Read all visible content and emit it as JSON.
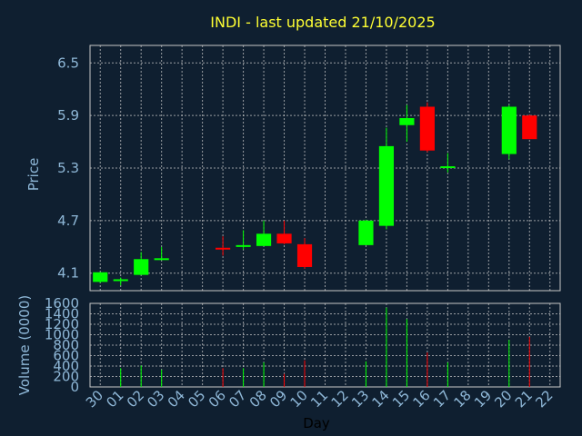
{
  "chart_data": {
    "type": "candlestick",
    "title": "INDI - last updated 21/10/2025",
    "ylabel": "Price",
    "xlabel": "Day",
    "volume_label": "Volume (0000)",
    "x_labels": [
      "30",
      "01",
      "02",
      "03",
      "04",
      "05",
      "06",
      "07",
      "08",
      "09",
      "10",
      "11",
      "12",
      "13",
      "14",
      "15",
      "16",
      "17",
      "18",
      "19",
      "20",
      "21",
      "22"
    ],
    "price_ticks": [
      "6.5",
      "5.9",
      "5.3",
      "4.7",
      "4.1"
    ],
    "price_tick_values": [
      6.5,
      5.9,
      5.3,
      4.7,
      4.1
    ],
    "price_ylim": [
      3.9,
      6.7
    ],
    "volume_ticks": [
      "1600",
      "1400",
      "1200",
      "1000",
      "800",
      "600",
      "400",
      "200",
      "0"
    ],
    "volume_tick_values": [
      1600,
      1400,
      1200,
      1000,
      800,
      600,
      400,
      200,
      0
    ],
    "volume_ylim": [
      0,
      1600
    ],
    "candles": [
      {
        "x": "30",
        "open": 4.0,
        "close": 4.11,
        "high": 4.11,
        "low": 3.99,
        "volume": 0
      },
      {
        "x": "01",
        "open": 4.03,
        "close": 4.03,
        "high": 4.05,
        "low": 3.96,
        "volume": 360
      },
      {
        "x": "02",
        "open": 4.08,
        "close": 4.26,
        "high": 4.34,
        "low": 4.08,
        "volume": 410
      },
      {
        "x": "03",
        "open": 4.26,
        "close": 4.27,
        "high": 4.4,
        "low": 4.25,
        "volume": 330
      },
      {
        "x": "06",
        "open": 4.39,
        "close": 4.37,
        "high": 4.52,
        "low": 4.3,
        "volume": 360
      },
      {
        "x": "07",
        "open": 4.4,
        "close": 4.42,
        "high": 4.59,
        "low": 4.37,
        "volume": 360
      },
      {
        "x": "08",
        "open": 4.41,
        "close": 4.55,
        "high": 4.7,
        "low": 4.41,
        "volume": 470
      },
      {
        "x": "09",
        "open": 4.55,
        "close": 4.44,
        "high": 4.7,
        "low": 4.43,
        "volume": 250
      },
      {
        "x": "10",
        "open": 4.43,
        "close": 4.17,
        "high": 4.5,
        "low": 4.15,
        "volume": 510
      },
      {
        "x": "13",
        "open": 4.42,
        "close": 4.7,
        "high": 4.71,
        "low": 4.42,
        "volume": 490
      },
      {
        "x": "14",
        "open": 4.64,
        "close": 5.55,
        "high": 5.76,
        "low": 4.6,
        "volume": 1520
      },
      {
        "x": "15",
        "open": 5.79,
        "close": 5.87,
        "high": 6.02,
        "low": 5.6,
        "volume": 1300
      },
      {
        "x": "16",
        "open": 6.0,
        "close": 5.5,
        "high": 6.05,
        "low": 5.48,
        "volume": 660
      },
      {
        "x": "17",
        "open": 5.32,
        "close": 5.32,
        "high": 5.47,
        "low": 5.25,
        "volume": 470
      },
      {
        "x": "20",
        "open": 5.46,
        "close": 6.0,
        "high": 6.02,
        "low": 5.4,
        "volume": 900
      },
      {
        "x": "21",
        "open": 5.9,
        "close": 5.63,
        "high": 5.91,
        "low": 5.63,
        "volume": 960
      }
    ],
    "grid": true,
    "colors": {
      "background": "#0f1f30",
      "up": "#00ff00",
      "down": "#ff0000",
      "title": "#ffff33",
      "axis_text": "#8fb8d8",
      "grid": "#c8c8c8"
    }
  }
}
